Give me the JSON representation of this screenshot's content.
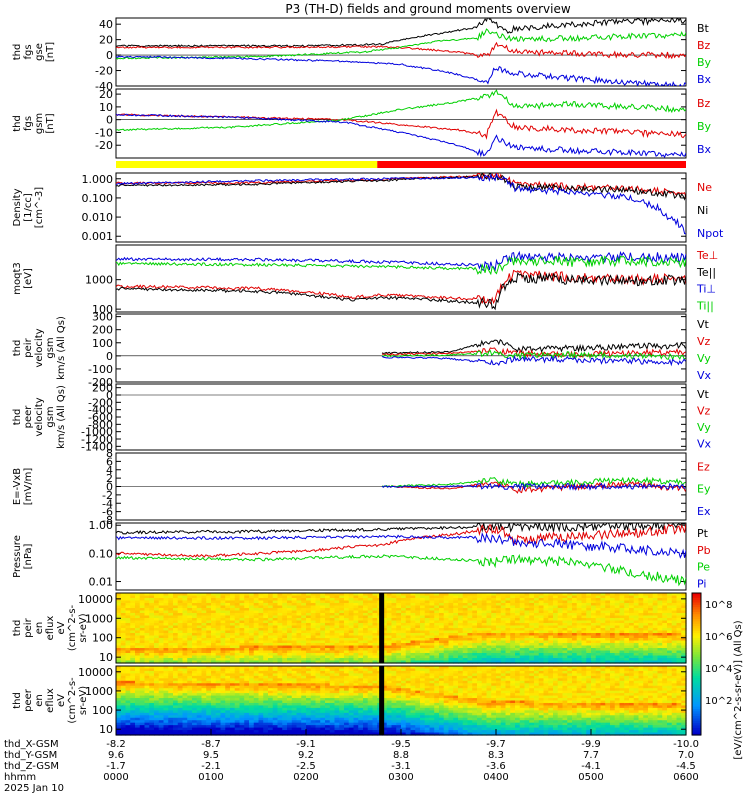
{
  "title": "P3 (TH-D) fields and ground moments overview",
  "colors": {
    "black": "#000000",
    "red": "#e00000",
    "green": "#00d000",
    "blue": "#0000dd",
    "spec_low": "#0000ff",
    "spec_high": "#ff0000"
  },
  "chart_data": [
    {
      "id": "fgs_gse",
      "type": "line",
      "ylabel": [
        "thd",
        "fgs",
        "gse",
        "[nT]"
      ],
      "ylim": [
        -40,
        48
      ],
      "yticks": [
        40,
        20,
        0,
        -20,
        -40
      ],
      "series": [
        {
          "name": "Bt",
          "color": "black",
          "x": [
            0,
            110,
            200,
            280,
            300,
            330,
            360,
            380,
            390,
            400,
            410,
            420,
            440,
            460,
            480,
            520,
            560,
            600
          ],
          "y": [
            12,
            12,
            12,
            14,
            20,
            26,
            32,
            36,
            48,
            40,
            30,
            34,
            36,
            38,
            40,
            42,
            44,
            45
          ]
        },
        {
          "name": "Bz",
          "color": "red",
          "x": [
            0,
            150,
            280,
            320,
            360,
            390,
            400,
            420,
            480,
            540,
            600
          ],
          "y": [
            10,
            10,
            11,
            8,
            4,
            -2,
            14,
            4,
            2,
            0,
            0
          ]
        },
        {
          "name": "By",
          "color": "green",
          "x": [
            0,
            150,
            260,
            300,
            340,
            380,
            390,
            420,
            480,
            540,
            600
          ],
          "y": [
            -4,
            -2,
            4,
            10,
            18,
            22,
            30,
            20,
            22,
            24,
            26
          ]
        },
        {
          "name": "Bx",
          "color": "blue",
          "x": [
            0,
            120,
            240,
            300,
            340,
            370,
            390,
            400,
            420,
            480,
            540,
            600
          ],
          "y": [
            -2,
            -4,
            -8,
            -12,
            -20,
            -28,
            -36,
            -16,
            -24,
            -30,
            -36,
            -40
          ]
        }
      ]
    },
    {
      "id": "fgs_gsm",
      "type": "line",
      "ylabel": [
        "thd",
        "fgs",
        "gsm",
        "[nT]"
      ],
      "ylim": [
        -30,
        24
      ],
      "yticks": [
        20,
        10,
        0,
        -10,
        -20
      ],
      "series": [
        {
          "name": "Bz",
          "color": "red",
          "x": [
            0,
            120,
            240,
            300,
            360,
            390,
            400,
            420,
            480,
            540,
            600
          ],
          "y": [
            4,
            2,
            0,
            -4,
            -8,
            -12,
            6,
            -6,
            -8,
            -10,
            -12
          ]
        },
        {
          "name": "By",
          "color": "green",
          "x": [
            0,
            120,
            240,
            300,
            360,
            390,
            400,
            420,
            480,
            540,
            600
          ],
          "y": [
            -8,
            -6,
            0,
            8,
            14,
            18,
            22,
            10,
            12,
            10,
            8
          ]
        },
        {
          "name": "Bx",
          "color": "blue",
          "x": [
            0,
            120,
            240,
            300,
            360,
            390,
            400,
            420,
            480,
            540,
            600
          ],
          "y": [
            4,
            2,
            -2,
            -10,
            -20,
            -28,
            -14,
            -22,
            -24,
            -26,
            -28
          ]
        }
      ]
    },
    {
      "id": "bar",
      "type": "bar",
      "segments": [
        {
          "x0": 0,
          "x1": 275,
          "color": "#ffff00"
        },
        {
          "x0": 275,
          "x1": 600,
          "color": "#ff0000"
        }
      ]
    },
    {
      "id": "density",
      "type": "line",
      "log": true,
      "ylabel": [
        "Density",
        "[1/cc]",
        "[cm^-3]"
      ],
      "ylim": [
        0.0005,
        2
      ],
      "yticks": [
        1,
        0.1,
        0.01,
        0.001
      ],
      "ytick_labels": [
        "1.000",
        "0.100",
        "0.010",
        "0.001"
      ],
      "series": [
        {
          "name": "Ne",
          "color": "red",
          "x": [
            0,
            140,
            280,
            300,
            400,
            420,
            480,
            540,
            600
          ],
          "y": [
            0.6,
            0.6,
            0.9,
            1,
            1.5,
            0.5,
            0.4,
            0.3,
            0.15
          ]
        },
        {
          "name": "Ni",
          "color": "black",
          "x": [
            0,
            140,
            280,
            300,
            400,
            420,
            480,
            540,
            600
          ],
          "y": [
            0.45,
            0.5,
            0.8,
            0.9,
            1.4,
            0.4,
            0.3,
            0.25,
            0.12
          ]
        },
        {
          "name": "Npot",
          "color": "blue",
          "x": [
            0,
            400,
            420,
            480,
            540,
            560,
            580,
            600
          ],
          "y": [
            0.55,
            1.2,
            0.3,
            0.2,
            0.1,
            0.05,
            0.01,
            0.001
          ]
        }
      ]
    },
    {
      "id": "temp",
      "type": "line",
      "log": true,
      "ylabel": [
        "moqt3",
        "[eV]"
      ],
      "ylim": [
        80,
        15000
      ],
      "yticks": [
        1000,
        100
      ],
      "ytick_labels": [
        "1000",
        "100"
      ],
      "series": [
        {
          "name": "Te⊥",
          "color": "red",
          "x": [
            0,
            150,
            250,
            280,
            400,
            420,
            480,
            540,
            600
          ],
          "y": [
            600,
            500,
            250,
            300,
            200,
            1500,
            1200,
            1000,
            1100
          ]
        },
        {
          "name": "Te||",
          "color": "black",
          "x": [
            0,
            150,
            250,
            280,
            400,
            420,
            480,
            540,
            600
          ],
          "y": [
            500,
            400,
            200,
            250,
            150,
            1200,
            1000,
            900,
            1000
          ]
        },
        {
          "name": "Ti⊥",
          "color": "blue",
          "x": [
            0,
            150,
            280,
            400,
            420,
            480,
            540,
            600
          ],
          "y": [
            5000,
            4800,
            4000,
            3000,
            6000,
            5500,
            6000,
            5500
          ]
        },
        {
          "name": "Ti||",
          "color": "green",
          "x": [
            0,
            150,
            280,
            400,
            420,
            480,
            540,
            600
          ],
          "y": [
            3500,
            3200,
            2800,
            2200,
            4500,
            4000,
            4500,
            4000
          ]
        }
      ]
    },
    {
      "id": "peir_vel",
      "type": "line",
      "ylabel": [
        "thd",
        "peir",
        "velocity",
        "gsm",
        "km/s (All Qs)"
      ],
      "ylim": [
        -200,
        320
      ],
      "yticks": [
        300,
        200,
        100,
        0,
        -100,
        -200
      ],
      "series": [
        {
          "name": "Vt",
          "color": "black",
          "x": [
            280,
            350,
            400,
            420,
            480,
            540,
            600
          ],
          "y": [
            20,
            30,
            120,
            50,
            60,
            70,
            80
          ]
        },
        {
          "name": "Vz",
          "color": "red",
          "x": [
            280,
            350,
            400,
            420,
            480,
            540,
            600
          ],
          "y": [
            10,
            20,
            40,
            20,
            10,
            20,
            30
          ]
        },
        {
          "name": "Vy",
          "color": "green",
          "x": [
            280,
            350,
            400,
            420,
            480,
            540,
            600
          ],
          "y": [
            0,
            5,
            20,
            0,
            10,
            0,
            -10
          ]
        },
        {
          "name": "Vx",
          "color": "blue",
          "x": [
            280,
            350,
            400,
            420,
            480,
            540,
            600
          ],
          "y": [
            -10,
            -20,
            -60,
            -20,
            -30,
            -40,
            -50
          ]
        }
      ]
    },
    {
      "id": "peer_vel",
      "type": "line",
      "ylabel": [
        "thd",
        "peer",
        "velocity",
        "gsm",
        "km/s (All Qs)"
      ],
      "ylim": [
        -1500,
        300
      ],
      "yticks": [
        200,
        0,
        -200,
        -400,
        -600,
        -800,
        -1000,
        -1200,
        -1400
      ],
      "series": [
        {
          "name": "Vt",
          "color": "black",
          "x": [],
          "y": []
        },
        {
          "name": "Vz",
          "color": "red",
          "x": [],
          "y": []
        },
        {
          "name": "Vy",
          "color": "green",
          "x": [],
          "y": []
        },
        {
          "name": "Vx",
          "color": "blue",
          "x": [],
          "y": []
        }
      ]
    },
    {
      "id": "efield",
      "type": "line",
      "ylabel": [
        "E=-VxB",
        "[mV/m]"
      ],
      "ylim": [
        -8,
        8
      ],
      "yticks": [
        8,
        6,
        4,
        2,
        0,
        -2,
        -4,
        -6,
        -8
      ],
      "series": [
        {
          "name": "Ez",
          "color": "red",
          "x": [
            280,
            350,
            400,
            420,
            480,
            540,
            600
          ],
          "y": [
            0,
            -0.5,
            1,
            -1,
            0,
            0.5,
            -0.5
          ]
        },
        {
          "name": "Ey",
          "color": "green",
          "x": [
            280,
            350,
            400,
            420,
            480,
            540,
            600
          ],
          "y": [
            0,
            0.5,
            1.5,
            0.5,
            1,
            1.5,
            1
          ]
        },
        {
          "name": "Ex",
          "color": "blue",
          "x": [
            280,
            600
          ],
          "y": [
            0,
            0
          ]
        }
      ]
    },
    {
      "id": "pressure",
      "type": "line",
      "log": true,
      "ylabel": [
        "Pressure",
        "[nPa]"
      ],
      "ylim": [
        0.005,
        1.2
      ],
      "yticks": [
        1,
        0.1,
        0.01
      ],
      "ytick_labels": [
        "1.00",
        "0.10",
        "0.01"
      ],
      "series": [
        {
          "name": "Pt",
          "color": "black",
          "x": [
            0,
            150,
            280,
            400,
            420,
            480,
            540,
            600
          ],
          "y": [
            0.55,
            0.6,
            0.7,
            0.9,
            0.8,
            0.9,
            0.95,
            1
          ]
        },
        {
          "name": "Pb",
          "color": "red",
          "x": [
            0,
            100,
            200,
            280,
            360,
            400,
            420,
            480,
            540,
            600
          ],
          "y": [
            0.1,
            0.08,
            0.12,
            0.2,
            0.5,
            0.8,
            0.3,
            0.4,
            0.5,
            0.8
          ]
        },
        {
          "name": "Pe",
          "color": "green",
          "x": [
            0,
            150,
            280,
            400,
            420,
            480,
            540,
            600
          ],
          "y": [
            0.07,
            0.06,
            0.08,
            0.05,
            0.06,
            0.05,
            0.02,
            0.01
          ]
        },
        {
          "name": "Pi",
          "color": "blue",
          "x": [
            0,
            150,
            280,
            400,
            420,
            480,
            540,
            600
          ],
          "y": [
            0.35,
            0.35,
            0.4,
            0.35,
            0.25,
            0.2,
            0.15,
            0.1
          ]
        }
      ]
    },
    {
      "id": "peir_spec",
      "type": "heatmap",
      "ylabel": [
        "thd",
        "peir",
        "en",
        "eflux",
        "eV",
        "(cm^2-s-",
        "sr-eV)"
      ],
      "ylim": [
        5,
        20000
      ],
      "yticks": [
        10000,
        1000,
        100,
        10
      ],
      "ytick_labels": [
        "10000",
        "1000",
        "100",
        "10"
      ],
      "profile": [
        {
          "x": 0,
          "cut": 30
        },
        {
          "x": 280,
          "cut": 40
        },
        {
          "x": 390,
          "cut": 200
        },
        {
          "x": 600,
          "cut": 150
        }
      ]
    },
    {
      "id": "peer_spec",
      "type": "heatmap",
      "ylabel": [
        "thd",
        "peer",
        "en",
        "eflux",
        "eV",
        "(cm^2-s-",
        "sr-eV)"
      ],
      "ylim": [
        5,
        20000
      ],
      "yticks": [
        10000,
        1000,
        100,
        10
      ],
      "ytick_labels": [
        "10000",
        "1000",
        "100",
        "10"
      ],
      "profile": [
        {
          "x": 0,
          "cut": 3000
        },
        {
          "x": 280,
          "cut": 2000
        },
        {
          "x": 390,
          "cut": 300
        },
        {
          "x": 600,
          "cut": 200
        }
      ]
    }
  ],
  "colorbar": {
    "ticks": [
      "10^8",
      "10^6",
      "10^4",
      "10^2"
    ],
    "label": "[eV/(cm^2-s-sr-eV)] (All Qs)"
  },
  "xaxis": {
    "x": [
      0,
      60,
      120,
      180,
      240,
      300,
      360
    ],
    "rows": [
      {
        "label": "thd_X-GSM",
        "values": [
          "-8.2",
          "-8.7",
          "-9.1",
          "-9.5",
          "-9.7",
          "-9.9",
          "-10.0"
        ]
      },
      {
        "label": "thd_Y-GSM",
        "values": [
          "9.6",
          "9.5",
          "9.2",
          "8.8",
          "8.3",
          "7.7",
          "7.0"
        ]
      },
      {
        "label": "thd_Z-GSM",
        "values": [
          "-1.7",
          "-2.1",
          "-2.5",
          "-3.1",
          "-3.6",
          "-4.1",
          "-4.5"
        ]
      },
      {
        "label": "hhmm",
        "values": [
          "0000",
          "0100",
          "0200",
          "0300",
          "0400",
          "0500",
          "0600"
        ]
      }
    ],
    "date": "2025 Jan 10"
  }
}
